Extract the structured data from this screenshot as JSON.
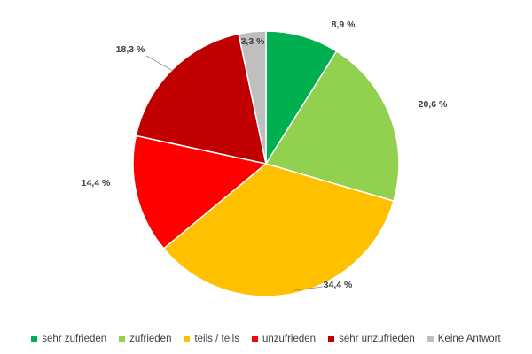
{
  "chart_data": {
    "type": "pie",
    "title": "",
    "legend_position": "bottom",
    "slices": [
      {
        "label": "sehr zufrieden",
        "value": 8.9,
        "value_label": "8,9 %",
        "color": "#00b050"
      },
      {
        "label": "zufrieden",
        "value": 20.6,
        "value_label": "20,6 %",
        "color": "#92d050"
      },
      {
        "label": "teils / teils",
        "value": 34.4,
        "value_label": "34,4 %",
        "color": "#ffc000"
      },
      {
        "label": "unzufrieden",
        "value": 14.4,
        "value_label": "14,4 %",
        "color": "#ff0000"
      },
      {
        "label": "sehr unzufrieden",
        "value": 18.3,
        "value_label": "18,3 %",
        "color": "#c00000"
      },
      {
        "label": "Keine Antwort",
        "value": 3.3,
        "value_label": "3,3 %",
        "color": "#bfbfbf"
      }
    ]
  }
}
